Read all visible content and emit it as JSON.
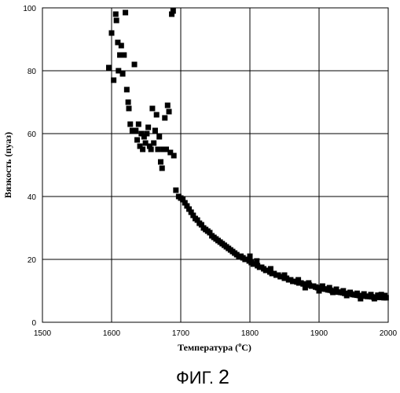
{
  "chart_data": {
    "type": "scatter",
    "xlabel_main": "Температура (",
    "xlabel_sup": "o",
    "xlabel_unit": "C)",
    "ylabel": "Вязкость (пуаз)",
    "caption_main": "ФИГ. ",
    "caption_num": "2",
    "xlim": [
      1500,
      2000
    ],
    "ylim": [
      0,
      100
    ],
    "xticks": [
      "1500",
      "1600",
      "1700",
      "1800",
      "1900",
      "2000"
    ],
    "yticks": [
      "0",
      "20",
      "40",
      "60",
      "80",
      "100"
    ],
    "grid": true,
    "marker": "square",
    "marker_color": "#000000",
    "points": [
      [
        1596,
        81
      ],
      [
        1600,
        92
      ],
      [
        1603,
        77
      ],
      [
        1606,
        98
      ],
      [
        1607,
        96
      ],
      [
        1609,
        89
      ],
      [
        1610,
        80
      ],
      [
        1612,
        85
      ],
      [
        1614,
        88
      ],
      [
        1616,
        79
      ],
      [
        1618,
        85
      ],
      [
        1620,
        98.5
      ],
      [
        1622,
        74
      ],
      [
        1624,
        70
      ],
      [
        1625,
        68
      ],
      [
        1627,
        63
      ],
      [
        1630,
        61
      ],
      [
        1633,
        82
      ],
      [
        1635,
        61
      ],
      [
        1637,
        58
      ],
      [
        1639,
        63
      ],
      [
        1641,
        56
      ],
      [
        1643,
        60
      ],
      [
        1645,
        55
      ],
      [
        1647,
        59
      ],
      [
        1649,
        57
      ],
      [
        1651,
        60
      ],
      [
        1653,
        62
      ],
      [
        1655,
        56
      ],
      [
        1657,
        55
      ],
      [
        1659,
        68
      ],
      [
        1661,
        57
      ],
      [
        1663,
        61
      ],
      [
        1665,
        66
      ],
      [
        1667,
        55
      ],
      [
        1669,
        59
      ],
      [
        1671,
        51
      ],
      [
        1673,
        49
      ],
      [
        1675,
        55
      ],
      [
        1677,
        65
      ],
      [
        1679,
        55
      ],
      [
        1681,
        69
      ],
      [
        1683,
        67
      ],
      [
        1685,
        54
      ],
      [
        1687,
        98
      ],
      [
        1689,
        99
      ],
      [
        1690,
        53
      ],
      [
        1693,
        42
      ],
      [
        1697,
        40
      ],
      [
        1700,
        39.5
      ],
      [
        1703,
        39
      ],
      [
        1706,
        38
      ],
      [
        1709,
        37
      ],
      [
        1712,
        36
      ],
      [
        1715,
        35
      ],
      [
        1718,
        34
      ],
      [
        1721,
        33
      ],
      [
        1724,
        32.5
      ],
      [
        1727,
        31.5
      ],
      [
        1730,
        31
      ],
      [
        1733,
        30
      ],
      [
        1736,
        29.5
      ],
      [
        1739,
        29
      ],
      [
        1742,
        28.5
      ],
      [
        1745,
        27.5
      ],
      [
        1748,
        27
      ],
      [
        1751,
        26.5
      ],
      [
        1754,
        26
      ],
      [
        1757,
        25.5
      ],
      [
        1760,
        25
      ],
      [
        1763,
        24.5
      ],
      [
        1766,
        24
      ],
      [
        1769,
        23.5
      ],
      [
        1772,
        23
      ],
      [
        1775,
        22.5
      ],
      [
        1778,
        22
      ],
      [
        1781,
        21.5
      ],
      [
        1784,
        21
      ],
      [
        1787,
        21
      ],
      [
        1790,
        20.5
      ],
      [
        1793,
        20
      ],
      [
        1796,
        20
      ],
      [
        1799,
        19.5
      ],
      [
        1802,
        19
      ],
      [
        1805,
        18.5
      ],
      [
        1808,
        18.5
      ],
      [
        1811,
        18
      ],
      [
        1814,
        17.5
      ],
      [
        1817,
        17.5
      ],
      [
        1820,
        17
      ],
      [
        1823,
        16.5
      ],
      [
        1826,
        16.5
      ],
      [
        1829,
        16
      ],
      [
        1832,
        15.5
      ],
      [
        1835,
        15.5
      ],
      [
        1838,
        15
      ],
      [
        1841,
        15
      ],
      [
        1844,
        14.5
      ],
      [
        1847,
        14.5
      ],
      [
        1850,
        14
      ],
      [
        1853,
        14
      ],
      [
        1856,
        13.5
      ],
      [
        1859,
        13.5
      ],
      [
        1862,
        13
      ],
      [
        1865,
        13
      ],
      [
        1868,
        12.8
      ],
      [
        1871,
        12.5
      ],
      [
        1874,
        12.5
      ],
      [
        1877,
        12.2
      ],
      [
        1880,
        12
      ],
      [
        1883,
        12
      ],
      [
        1886,
        11.8
      ],
      [
        1889,
        11.5
      ],
      [
        1892,
        11.5
      ],
      [
        1895,
        11.2
      ],
      [
        1898,
        11
      ],
      [
        1901,
        11
      ],
      [
        1904,
        10.8
      ],
      [
        1907,
        10.6
      ],
      [
        1910,
        10.5
      ],
      [
        1913,
        10.3
      ],
      [
        1916,
        10.2
      ],
      [
        1919,
        10
      ],
      [
        1922,
        10
      ],
      [
        1925,
        9.8
      ],
      [
        1928,
        9.6
      ],
      [
        1931,
        9.5
      ],
      [
        1934,
        9.4
      ],
      [
        1937,
        9.2
      ],
      [
        1940,
        9.1
      ],
      [
        1943,
        9
      ],
      [
        1946,
        9
      ],
      [
        1949,
        8.8
      ],
      [
        1952,
        8.7
      ],
      [
        1955,
        8.6
      ],
      [
        1958,
        8.5
      ],
      [
        1961,
        8.4
      ],
      [
        1964,
        8.4
      ],
      [
        1967,
        8.3
      ],
      [
        1970,
        8.2
      ],
      [
        1973,
        8.2
      ],
      [
        1976,
        8.1
      ],
      [
        1979,
        8
      ],
      [
        1982,
        8
      ],
      [
        1985,
        8
      ],
      [
        1988,
        7.9
      ],
      [
        1991,
        7.9
      ],
      [
        1994,
        7.8
      ],
      [
        1997,
        7.8
      ],
      [
        1800,
        21
      ],
      [
        1810,
        19.5
      ],
      [
        1830,
        17
      ],
      [
        1850,
        15
      ],
      [
        1870,
        13.5
      ],
      [
        1885,
        12.5
      ],
      [
        1905,
        11.5
      ],
      [
        1915,
        11
      ],
      [
        1925,
        10.5
      ],
      [
        1935,
        10
      ],
      [
        1945,
        9.5
      ],
      [
        1955,
        9.2
      ],
      [
        1965,
        9
      ],
      [
        1975,
        8.8
      ],
      [
        1985,
        8.6
      ],
      [
        1995,
        8.5
      ],
      [
        1880,
        11
      ],
      [
        1900,
        10
      ],
      [
        1920,
        9.5
      ],
      [
        1940,
        8.5
      ],
      [
        1960,
        7.5
      ],
      [
        1980,
        7.5
      ],
      [
        1990,
        8.8
      ]
    ]
  }
}
